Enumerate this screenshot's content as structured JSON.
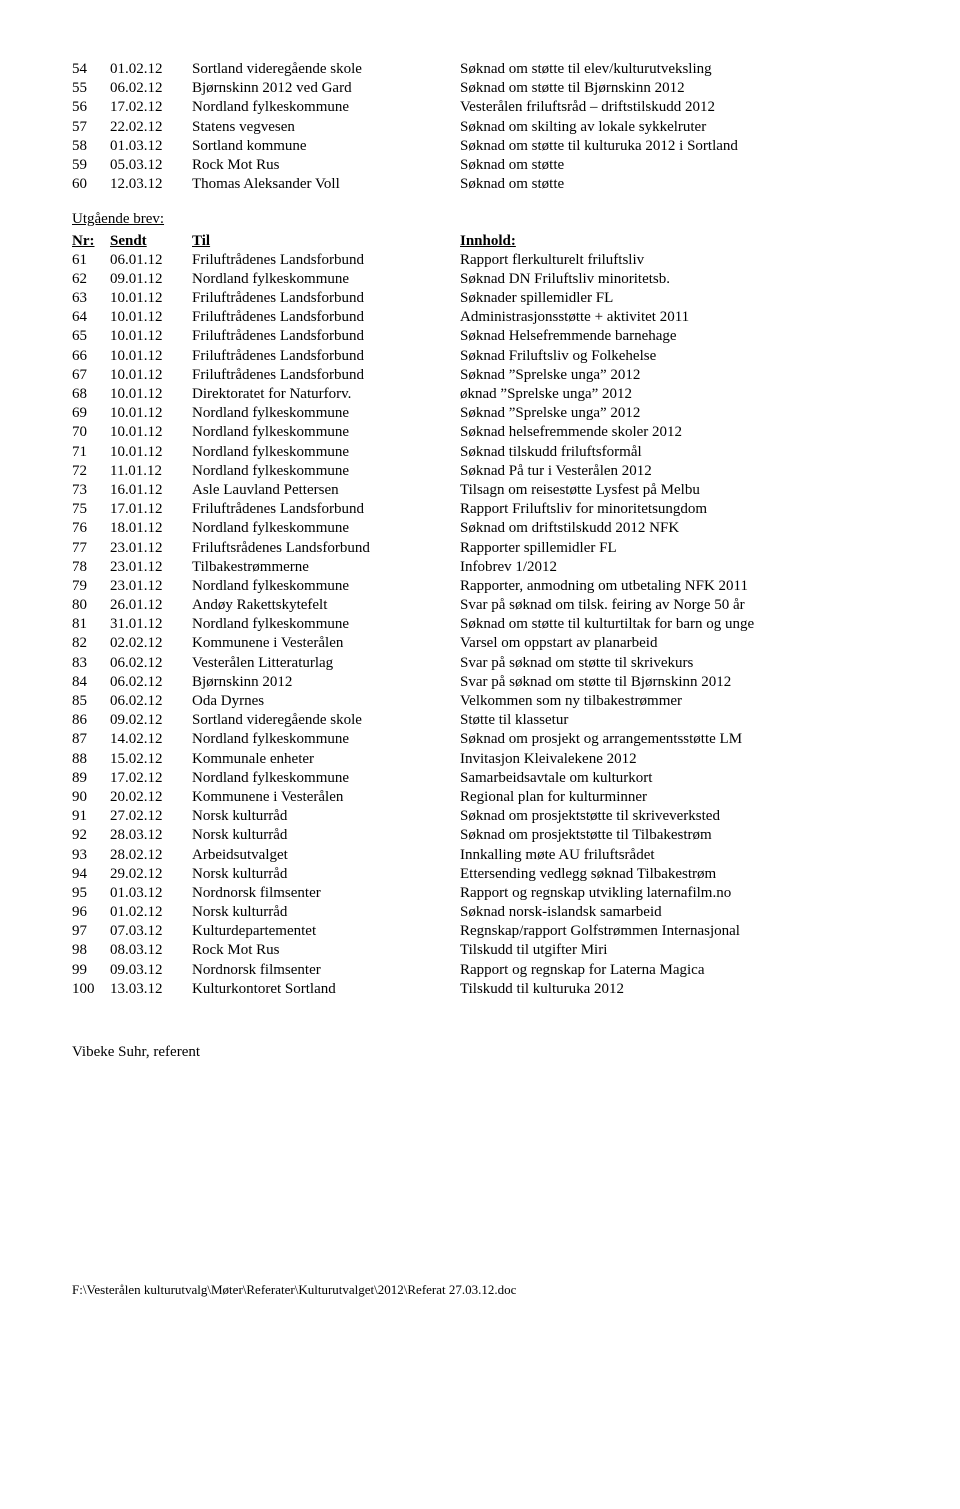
{
  "top_rows": [
    {
      "nr": "54",
      "date": "01.02.12",
      "who": "Sortland videregående skole",
      "desc": "Søknad om støtte til elev/kulturutveksling"
    },
    {
      "nr": "55",
      "date": "06.02.12",
      "who": "Bjørnskinn 2012 ved Gard",
      "desc": "Søknad om støtte til Bjørnskinn 2012"
    },
    {
      "nr": "56",
      "date": "17.02.12",
      "who": "Nordland fylkeskommune",
      "desc": "Vesterålen friluftsråd – driftstilskudd 2012"
    },
    {
      "nr": "57",
      "date": "22.02.12",
      "who": "Statens vegvesen",
      "desc": "Søknad om skilting av lokale sykkelruter"
    },
    {
      "nr": "58",
      "date": "01.03.12",
      "who": "Sortland kommune",
      "desc": "Søknad om støtte til kulturuka 2012 i Sortland"
    },
    {
      "nr": "59",
      "date": "05.03.12",
      "who": "Rock Mot Rus",
      "desc": "Søknad om støtte"
    },
    {
      "nr": "60",
      "date": "12.03.12",
      "who": "Thomas Aleksander Voll",
      "desc": "Søknad om støtte"
    }
  ],
  "section_heading": "Utgående brev:",
  "headers": {
    "nr": "Nr:",
    "date": "Sendt",
    "who": "Til",
    "desc": "Innhold:"
  },
  "bottom_rows": [
    {
      "nr": "61",
      "date": "06.01.12",
      "who": "Friluftrådenes Landsforbund",
      "desc": "Rapport flerkulturelt friluftsliv"
    },
    {
      "nr": "62",
      "date": "09.01.12",
      "who": "Nordland fylkeskommune",
      "desc": "Søknad DN Friluftsliv minoritetsb."
    },
    {
      "nr": "63",
      "date": "10.01.12",
      "who": "Friluftrådenes Landsforbund",
      "desc": "Søknader spillemidler FL"
    },
    {
      "nr": "64",
      "date": "10.01.12",
      "who": "Friluftrådenes Landsforbund",
      "desc": "Administrasjonsstøtte + aktivitet 2011"
    },
    {
      "nr": "65",
      "date": "10.01.12",
      "who": "Friluftrådenes Landsforbund",
      "desc": "Søknad Helsefremmende barnehage"
    },
    {
      "nr": "66",
      "date": "10.01.12",
      "who": "Friluftrådenes Landsforbund",
      "desc": "Søknad Friluftsliv og Folkehelse"
    },
    {
      "nr": "67",
      "date": "10.01.12",
      "who": "Friluftrådenes Landsforbund",
      "desc": "Søknad ”Sprelske unga” 2012"
    },
    {
      "nr": "68",
      "date": "10.01.12",
      "who": "Direktoratet for Naturforv.",
      "desc": "øknad ”Sprelske unga” 2012"
    },
    {
      "nr": "69",
      "date": "10.01.12",
      "who": "Nordland fylkeskommune",
      "desc": "Søknad ”Sprelske unga” 2012"
    },
    {
      "nr": "70",
      "date": "10.01.12",
      "who": "Nordland fylkeskommune",
      "desc": "Søknad helsefremmende skoler 2012"
    },
    {
      "nr": "71",
      "date": "10.01.12",
      "who": "Nordland fylkeskommune",
      "desc": "Søknad tilskudd friluftsformål"
    },
    {
      "nr": "72",
      "date": "11.01.12",
      "who": "Nordland fylkeskommune",
      "desc": "Søknad På tur i Vesterålen 2012"
    },
    {
      "nr": "73",
      "date": "16.01.12",
      "who": "Asle Lauvland Pettersen",
      "desc": "Tilsagn om reisestøtte Lysfest på Melbu"
    },
    {
      "nr": "75",
      "date": "17.01.12",
      "who": "Friluftrådenes Landsforbund",
      "desc": "Rapport Friluftsliv for minoritetsungdom"
    },
    {
      "nr": "76",
      "date": "18.01.12",
      "who": "Nordland fylkeskommune",
      "desc": "Søknad om driftstilskudd 2012 NFK"
    },
    {
      "nr": "77",
      "date": "23.01.12",
      "who": "Friluftsrådenes Landsforbund",
      "desc": "Rapporter spillemidler FL"
    },
    {
      "nr": "78",
      "date": "23.01.12",
      "who": "Tilbakestrømmerne",
      "desc": "Infobrev 1/2012"
    },
    {
      "nr": "79",
      "date": "23.01.12",
      "who": "Nordland fylkeskommune",
      "desc": "Rapporter, anmodning om utbetaling NFK 2011"
    },
    {
      "nr": "80",
      "date": "26.01.12",
      "who": "Andøy Rakettskytefelt",
      "desc": "Svar på søknad om tilsk. feiring av Norge 50 år"
    },
    {
      "nr": "81",
      "date": "31.01.12",
      "who": "Nordland fylkeskommune",
      "desc": "Søknad om støtte til kulturtiltak for barn og unge"
    },
    {
      "nr": "82",
      "date": "02.02.12",
      "who": "Kommunene i Vesterålen",
      "desc": "Varsel om oppstart av planarbeid"
    },
    {
      "nr": "83",
      "date": "06.02.12",
      "who": "Vesterålen Litteraturlag",
      "desc": "Svar på søknad om støtte til skrivekurs"
    },
    {
      "nr": "84",
      "date": "06.02.12",
      "who": "Bjørnskinn 2012",
      "desc": "Svar på søknad om støtte til Bjørnskinn 2012"
    },
    {
      "nr": "85",
      "date": "06.02.12",
      "who": "Oda Dyrnes",
      "desc": "Velkommen som ny tilbakestrømmer"
    },
    {
      "nr": "86",
      "date": "09.02.12",
      "who": "Sortland videregående skole",
      "desc": "Støtte til klassetur"
    },
    {
      "nr": "87",
      "date": "14.02.12",
      "who": "Nordland fylkeskommune",
      "desc": "Søknad om prosjekt og arrangementsstøtte LM"
    },
    {
      "nr": "88",
      "date": "15.02.12",
      "who": "Kommunale enheter",
      "desc": "Invitasjon Kleivalekene 2012"
    },
    {
      "nr": "89",
      "date": "17.02.12",
      "who": "Nordland fylkeskommune",
      "desc": "Samarbeidsavtale om kulturkort"
    },
    {
      "nr": "90",
      "date": "20.02.12",
      "who": "Kommunene i Vesterålen",
      "desc": "Regional plan for kulturminner"
    },
    {
      "nr": "91",
      "date": "27.02.12",
      "who": "Norsk kulturråd",
      "desc": "Søknad om prosjektstøtte til skriveverksted"
    },
    {
      "nr": "92",
      "date": "28.03.12",
      "who": "Norsk kulturråd",
      "desc": "Søknad om prosjektstøtte til Tilbakestrøm"
    },
    {
      "nr": "93",
      "date": "28.02.12",
      "who": "Arbeidsutvalget",
      "desc": "Innkalling møte AU friluftsrådet"
    },
    {
      "nr": "94",
      "date": "29.02.12",
      "who": "Norsk kulturråd",
      "desc": "Ettersending vedlegg søknad Tilbakestrøm"
    },
    {
      "nr": "95",
      "date": "01.03.12",
      "who": "Nordnorsk filmsenter",
      "desc": "Rapport og regnskap utvikling laternafilm.no"
    },
    {
      "nr": "96",
      "date": "01.02.12",
      "who": "Norsk kulturråd",
      "desc": "Søknad norsk-islandsk samarbeid"
    },
    {
      "nr": "97",
      "date": "07.03.12",
      "who": "Kulturdepartementet",
      "desc": "Regnskap/rapport Golfstrømmen Internasjonal"
    },
    {
      "nr": "98",
      "date": "08.03.12",
      "who": "Rock Mot Rus",
      "desc": "Tilskudd til utgifter Miri"
    },
    {
      "nr": "99",
      "date": "09.03.12",
      "who": "Nordnorsk filmsenter",
      "desc": "Rapport og regnskap for Laterna Magica"
    },
    {
      "nr": "100",
      "date": "13.03.12",
      "who": "Kulturkontoret Sortland",
      "desc": "Tilskudd til kulturuka 2012"
    }
  ],
  "referent": "Vibeke Suhr, referent",
  "footer_path": "F:\\Vesterålen kulturutvalg\\Møter\\Referater\\Kulturutvalget\\2012\\Referat 27.03.12.doc"
}
